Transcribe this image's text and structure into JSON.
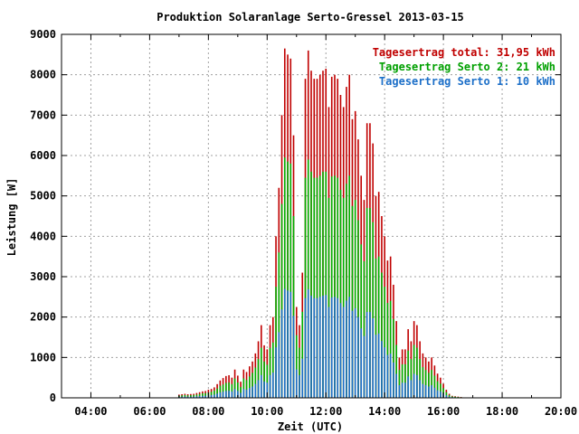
{
  "chart_data": {
    "type": "bar",
    "title": "Produktion Solaranlage Serto-Gressel 2013-03-15",
    "xlabel": "Zeit (UTC)",
    "ylabel": "Leistung [W]",
    "xlim": [
      3.0,
      20.0
    ],
    "ylim": [
      0,
      9000
    ],
    "x_ticks": [
      {
        "value": 4,
        "label": "04:00"
      },
      {
        "value": 6,
        "label": "06:00"
      },
      {
        "value": 8,
        "label": "08:00"
      },
      {
        "value": 10,
        "label": "10:00"
      },
      {
        "value": 12,
        "label": "12:00"
      },
      {
        "value": 14,
        "label": "14:00"
      },
      {
        "value": 16,
        "label": "16:00"
      },
      {
        "value": 18,
        "label": "18:00"
      },
      {
        "value": 20,
        "label": "20:00"
      }
    ],
    "y_ticks": [
      {
        "value": 0,
        "label": "0"
      },
      {
        "value": 1000,
        "label": "1000"
      },
      {
        "value": 2000,
        "label": "2000"
      },
      {
        "value": 3000,
        "label": "3000"
      },
      {
        "value": 4000,
        "label": "4000"
      },
      {
        "value": 5000,
        "label": "5000"
      },
      {
        "value": 6000,
        "label": "6000"
      },
      {
        "value": 7000,
        "label": "7000"
      },
      {
        "value": 8000,
        "label": "8000"
      },
      {
        "value": 9000,
        "label": "9000"
      }
    ],
    "grid": true,
    "legend_position": "top-right",
    "legend": [
      {
        "label": "Tagesertrag total: 31,95 kWh",
        "color": "#c00000"
      },
      {
        "label": "Tagesertrag Serto 2: 21 kWh",
        "color": "#00a000"
      },
      {
        "label": "Tagesertrag Serto 1: 10 kWh",
        "color": "#1c6fc8"
      }
    ],
    "series_colors": {
      "total": "#c00000",
      "serto2": "#00b000",
      "serto1": "#1c6fc8"
    },
    "x": [
      7.0,
      7.1,
      7.2,
      7.3,
      7.4,
      7.5,
      7.6,
      7.7,
      7.8,
      7.9,
      8.0,
      8.1,
      8.2,
      8.3,
      8.4,
      8.5,
      8.6,
      8.7,
      8.8,
      8.9,
      9.0,
      9.1,
      9.2,
      9.3,
      9.4,
      9.5,
      9.6,
      9.7,
      9.8,
      9.9,
      10.0,
      10.1,
      10.2,
      10.3,
      10.4,
      10.5,
      10.6,
      10.7,
      10.8,
      10.9,
      11.0,
      11.1,
      11.2,
      11.3,
      11.4,
      11.5,
      11.6,
      11.7,
      11.8,
      11.9,
      12.0,
      12.1,
      12.2,
      12.3,
      12.4,
      12.5,
      12.6,
      12.7,
      12.8,
      12.9,
      13.0,
      13.1,
      13.2,
      13.3,
      13.4,
      13.5,
      13.6,
      13.7,
      13.8,
      13.9,
      14.0,
      14.1,
      14.2,
      14.3,
      14.4,
      14.5,
      14.6,
      14.7,
      14.8,
      14.9,
      15.0,
      15.1,
      15.2,
      15.3,
      15.4,
      15.5,
      15.6,
      15.7,
      15.8,
      15.9,
      16.0,
      16.1,
      16.2,
      16.3,
      16.4,
      16.5,
      16.6,
      16.7,
      16.8,
      16.9,
      17.0,
      17.1,
      17.2,
      17.3,
      17.4,
      17.5
    ],
    "series": [
      {
        "name": "total",
        "values": [
          80,
          90,
          100,
          90,
          95,
          100,
          120,
          140,
          160,
          170,
          200,
          220,
          260,
          340,
          430,
          490,
          540,
          560,
          500,
          700,
          550,
          400,
          700,
          640,
          780,
          900,
          1100,
          1400,
          1800,
          1300,
          1200,
          1800,
          2000,
          4000,
          5200,
          7000,
          8650,
          8500,
          8400,
          6500,
          2250,
          1800,
          3100,
          7900,
          8600,
          8100,
          7900,
          7900,
          8000,
          8100,
          8150,
          7200,
          7950,
          8000,
          7900,
          7500,
          7200,
          7700,
          8000,
          6900,
          7100,
          6400,
          5500,
          4900,
          6800,
          6800,
          6300,
          5000,
          5100,
          4500,
          4000,
          3400,
          3500,
          2800,
          1900,
          1000,
          1200,
          1200,
          1700,
          1400,
          1900,
          1800,
          1400,
          1100,
          1000,
          900,
          1000,
          800,
          600,
          500,
          350,
          200,
          100,
          50,
          40,
          30,
          20,
          10,
          5,
          0,
          0,
          0,
          0,
          0,
          0,
          0
        ],
        "note": ""
      },
      {
        "name": "Serto 2",
        "values": [
          50,
          60,
          70,
          60,
          65,
          70,
          80,
          95,
          110,
          115,
          130,
          150,
          180,
          230,
          300,
          330,
          370,
          380,
          340,
          480,
          380,
          270,
          480,
          440,
          530,
          620,
          750,
          960,
          1240,
          900,
          820,
          1240,
          1370,
          2750,
          3600,
          4800,
          5950,
          5850,
          5800,
          4500,
          1550,
          1240,
          2130,
          5450,
          5900,
          5600,
          5450,
          5450,
          5500,
          5600,
          5600,
          4950,
          5480,
          5500,
          5450,
          5150,
          4950,
          5300,
          5500,
          4750,
          4900,
          4400,
          3800,
          3380,
          4700,
          4700,
          4350,
          3450,
          3500,
          3100,
          2750,
          2350,
          2400,
          1950,
          1310,
          690,
          830,
          830,
          1170,
          960,
          1310,
          1240,
          960,
          760,
          690,
          620,
          690,
          550,
          410,
          350,
          240,
          140,
          70,
          35,
          28,
          20,
          14,
          7,
          3,
          0,
          0,
          0,
          0,
          0,
          0,
          0
        ]
      },
      {
        "name": "Serto 1",
        "values": [
          25,
          28,
          32,
          28,
          30,
          32,
          38,
          44,
          50,
          53,
          62,
          69,
          81,
          106,
          134,
          153,
          169,
          175,
          156,
          219,
          172,
          125,
          219,
          200,
          244,
          281,
          344,
          438,
          563,
          406,
          375,
          563,
          625,
          1250,
          1625,
          2188,
          2700,
          2656,
          2625,
          2031,
          703,
          563,
          969,
          2469,
          2688,
          2531,
          2469,
          2469,
          2500,
          2531,
          2547,
          2250,
          2484,
          2500,
          2469,
          2344,
          2250,
          2406,
          2500,
          2156,
          2219,
          2000,
          1719,
          1531,
          2125,
          2125,
          1969,
          1563,
          1594,
          1406,
          1250,
          1063,
          1094,
          875,
          594,
          313,
          375,
          375,
          531,
          438,
          594,
          563,
          438,
          344,
          313,
          281,
          313,
          250,
          188,
          156,
          109,
          63,
          31,
          16,
          13,
          9,
          6,
          3,
          2,
          0,
          0,
          0,
          0,
          0,
          0,
          0
        ]
      }
    ]
  }
}
